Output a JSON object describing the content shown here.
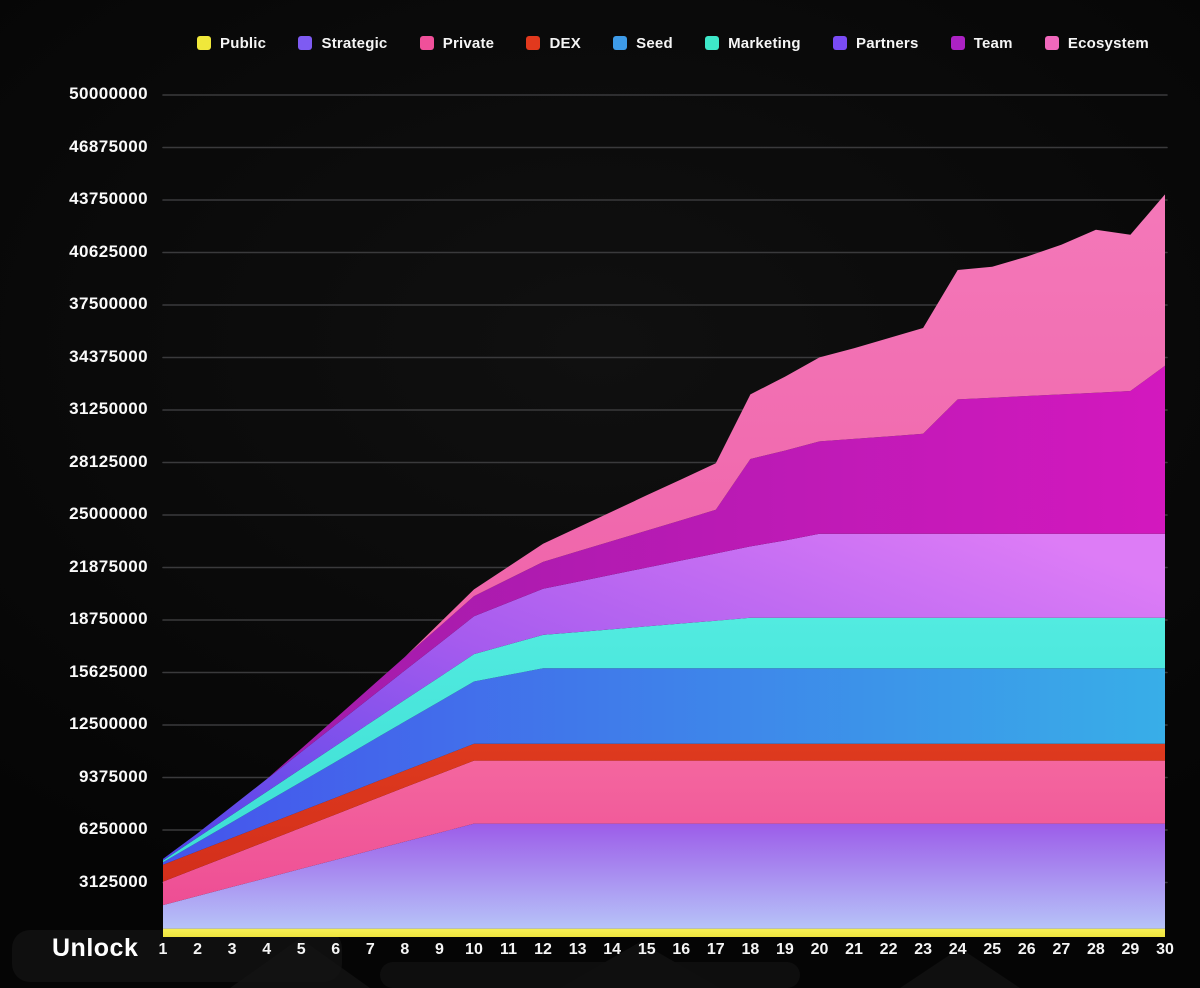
{
  "chart_data": {
    "type": "area",
    "stacked": true,
    "title": "",
    "xlabel": "Unlock",
    "ylabel": "",
    "x": [
      1,
      2,
      3,
      4,
      5,
      6,
      7,
      8,
      9,
      10,
      11,
      12,
      13,
      14,
      15,
      16,
      17,
      18,
      19,
      20,
      21,
      22,
      23,
      24,
      25,
      26,
      27,
      28,
      29,
      30
    ],
    "y_ticks": [
      "50000000",
      "46875000",
      "43750000",
      "40625000",
      "37500000",
      "34375000",
      "31250000",
      "28125000",
      "25000000",
      "21875000",
      "18750000",
      "15625000",
      "12500000",
      "9375000",
      "6250000",
      "3125000"
    ],
    "y_tick_values": [
      50000000,
      46875000,
      43750000,
      40625000,
      37500000,
      34375000,
      31250000,
      28125000,
      25000000,
      21875000,
      18750000,
      15625000,
      12500000,
      9375000,
      6250000,
      3125000
    ],
    "ylim": [
      0,
      50000000
    ],
    "grid": true,
    "legend_position": "top",
    "series": [
      {
        "id": "public",
        "name": "Public",
        "legend_color": "#F0E83A",
        "fill": {
          "direction": "vertical",
          "stops": [
            "#F7F056",
            "#EFE43C"
          ]
        },
        "values": [
          500000,
          500000,
          500000,
          500000,
          500000,
          500000,
          500000,
          500000,
          500000,
          500000,
          500000,
          500000,
          500000,
          500000,
          500000,
          500000,
          500000,
          500000,
          500000,
          500000,
          500000,
          500000,
          500000,
          500000,
          500000,
          500000,
          500000,
          500000,
          500000,
          500000
        ]
      },
      {
        "id": "strategic",
        "name": "Strategic",
        "legend_color": "#7E5BF2",
        "fill": {
          "direction": "vertical",
          "stops": [
            "#9C5CE9",
            "#B6C3F8"
          ]
        },
        "values": [
          1400000,
          1940000,
          2480000,
          3020000,
          3560000,
          4100000,
          4640000,
          5180000,
          5710000,
          6250000,
          6250000,
          6250000,
          6250000,
          6250000,
          6250000,
          6250000,
          6250000,
          6250000,
          6250000,
          6250000,
          6250000,
          6250000,
          6250000,
          6250000,
          6250000,
          6250000,
          6250000,
          6250000,
          6250000,
          6250000
        ]
      },
      {
        "id": "private",
        "name": "Private",
        "legend_color": "#F0509A",
        "fill": {
          "direction": "vertical",
          "stops": [
            "#F4669F",
            "#EE4E94"
          ]
        },
        "values": [
          1400000,
          1660000,
          1920000,
          2180000,
          2440000,
          2700000,
          2970000,
          3230000,
          3490000,
          3750000,
          3750000,
          3750000,
          3750000,
          3750000,
          3750000,
          3750000,
          3750000,
          3750000,
          3750000,
          3750000,
          3750000,
          3750000,
          3750000,
          3750000,
          3750000,
          3750000,
          3750000,
          3750000,
          3750000,
          3750000
        ]
      },
      {
        "id": "dex",
        "name": "DEX",
        "legend_color": "#E2391D",
        "fill": {
          "direction": "vertical",
          "stops": [
            "#DE3A1E",
            "#D32F1B"
          ]
        },
        "values": [
          1000000,
          1000000,
          1000000,
          1000000,
          1000000,
          1000000,
          1000000,
          1000000,
          1000000,
          1000000,
          1000000,
          1000000,
          1000000,
          1000000,
          1000000,
          1000000,
          1000000,
          1000000,
          1000000,
          1000000,
          1000000,
          1000000,
          1000000,
          1000000,
          1000000,
          1000000,
          1000000,
          1000000,
          1000000,
          1000000
        ]
      },
      {
        "id": "seed",
        "name": "Seed",
        "legend_color": "#3E9BE8",
        "fill": {
          "direction": "horizontal",
          "stops": [
            "#4653EC",
            "#38AEE8"
          ]
        },
        "values": [
          150000,
          550000,
          940000,
          1340000,
          1730000,
          2130000,
          2520000,
          2920000,
          3310000,
          3710000,
          4100000,
          4500000,
          4500000,
          4500000,
          4500000,
          4500000,
          4500000,
          4500000,
          4500000,
          4500000,
          4500000,
          4500000,
          4500000,
          4500000,
          4500000,
          4500000,
          4500000,
          4500000,
          4500000,
          4500000
        ]
      },
      {
        "id": "marketing",
        "name": "Marketing",
        "legend_color": "#3EE8C9",
        "fill": {
          "direction": "vertical",
          "stops": [
            "#52EBE0",
            "#3CDED4"
          ]
        },
        "values": [
          100000,
          270000,
          440000,
          610000,
          780000,
          950000,
          1120000,
          1290000,
          1460000,
          1630000,
          1810000,
          1980000,
          2150000,
          2320000,
          2490000,
          2660000,
          2830000,
          3000000,
          3000000,
          3000000,
          3000000,
          3000000,
          3000000,
          3000000,
          3000000,
          3000000,
          3000000,
          3000000,
          3000000,
          3000000
        ]
      },
      {
        "id": "partners",
        "name": "Partners",
        "legend_color": "#7A4BF5",
        "fill": {
          "direction": "diagonal",
          "stops": [
            "#4B43E8",
            "#A55BEE",
            "#DD7CF6"
          ]
        },
        "values": [
          100000,
          250000,
          500000,
          750000,
          1000000,
          1250000,
          1500000,
          1750000,
          2000000,
          2250000,
          2500000,
          2750000,
          3000000,
          3250000,
          3500000,
          3750000,
          4000000,
          4250000,
          4600000,
          5000000,
          5000000,
          5000000,
          5000000,
          5000000,
          5000000,
          5000000,
          5000000,
          5000000,
          5000000,
          5000000
        ]
      },
      {
        "id": "team",
        "name": "Team",
        "legend_color": "#AC22C4",
        "fill": {
          "direction": "horizontal",
          "stops": [
            "#9A1DA8",
            "#D318BE"
          ]
        },
        "values": [
          0,
          0,
          0,
          0,
          200000,
          400000,
          600000,
          800000,
          1000000,
          1200000,
          1400000,
          1600000,
          1800000,
          2000000,
          2200000,
          2400000,
          2600000,
          5200000,
          5350000,
          5500000,
          5650000,
          5800000,
          5950000,
          8000000,
          8100000,
          8200000,
          8300000,
          8400000,
          8500000,
          10000000
        ]
      },
      {
        "id": "ecosystem",
        "name": "Ecosystem",
        "legend_color": "#F068BC",
        "fill": {
          "direction": "vertical",
          "stops": [
            "#F478B9",
            "#EC59A1"
          ]
        },
        "values": [
          0,
          0,
          0,
          0,
          0,
          0,
          0,
          0,
          200000,
          400000,
          740000,
          1080000,
          1420000,
          1760000,
          2100000,
          2430000,
          2770000,
          3850000,
          4400000,
          5000000,
          5400000,
          5850000,
          6300000,
          7700000,
          7800000,
          8300000,
          8900000,
          9700000,
          9300000,
          10200000
        ]
      }
    ]
  },
  "colors": {
    "background": "#0a0a0a",
    "gridline": "#3a3a3c",
    "axis_text": "#fafafa"
  }
}
